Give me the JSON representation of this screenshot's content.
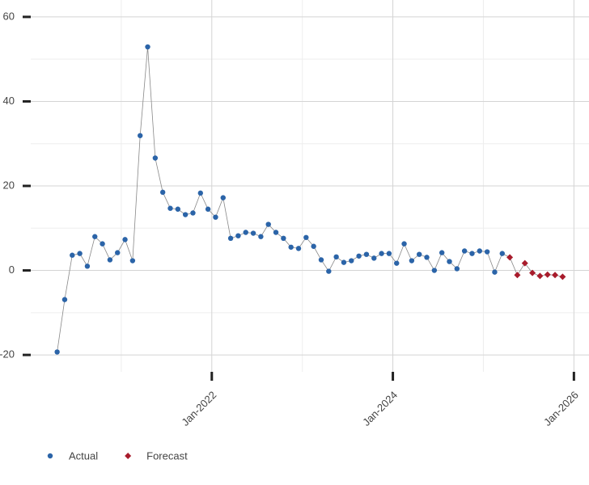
{
  "chart_data": {
    "type": "line",
    "xlim": [
      "Jan-2020",
      "Mar-2026"
    ],
    "xticks": [
      "Jan-2022",
      "Jan-2024",
      "Jan-2026"
    ],
    "ylim": [
      -24,
      64
    ],
    "yticks": [
      -20,
      0,
      20,
      40,
      60
    ],
    "grid": true,
    "legend": "bottom-left",
    "line_color": "#888888",
    "series": [
      {
        "name": "Actual",
        "color": "#2b64a8",
        "marker": "circle",
        "x": [
          "Apr-2020",
          "May-2020",
          "Jun-2020",
          "Jul-2020",
          "Aug-2020",
          "Sep-2020",
          "Oct-2020",
          "Nov-2020",
          "Dec-2020",
          "Jan-2021",
          "Feb-2021",
          "Mar-2021",
          "Apr-2021",
          "May-2021",
          "Jun-2021",
          "Jul-2021",
          "Aug-2021",
          "Sep-2021",
          "Oct-2021",
          "Nov-2021",
          "Dec-2021",
          "Jan-2022",
          "Feb-2022",
          "Mar-2022",
          "Apr-2022",
          "May-2022",
          "Jun-2022",
          "Jul-2022",
          "Aug-2022",
          "Sep-2022",
          "Oct-2022",
          "Nov-2022",
          "Dec-2022",
          "Jan-2023",
          "Feb-2023",
          "Mar-2023",
          "Apr-2023",
          "May-2023",
          "Jun-2023",
          "Jul-2023",
          "Aug-2023",
          "Sep-2023",
          "Oct-2023",
          "Nov-2023",
          "Dec-2023",
          "Jan-2024",
          "Feb-2024",
          "Mar-2024",
          "Apr-2024",
          "May-2024",
          "Jun-2024",
          "Jul-2024",
          "Aug-2024",
          "Sep-2024",
          "Oct-2024",
          "Nov-2024",
          "Dec-2024",
          "Jan-2025",
          "Feb-2025",
          "Mar-2025"
        ],
        "values": [
          -19.3,
          -6.9,
          3.6,
          4.0,
          1.0,
          8.0,
          6.3,
          2.5,
          4.2,
          7.3,
          2.3,
          31.9,
          52.9,
          26.6,
          18.5,
          14.7,
          14.5,
          13.2,
          13.6,
          18.3,
          14.5,
          12.6,
          17.2,
          7.6,
          8.2,
          9.0,
          8.8,
          8.0,
          10.9,
          9.0,
          7.6,
          5.5,
          5.2,
          7.8,
          5.7,
          2.5,
          -0.2,
          3.2,
          1.9,
          2.3,
          3.4,
          3.8,
          2.9,
          4.0,
          4.0,
          1.7,
          6.3,
          2.3,
          3.8,
          3.1,
          0.0,
          4.2,
          2.1,
          0.4,
          4.6,
          4.0,
          4.6,
          4.4,
          -0.4,
          4.0
        ]
      },
      {
        "name": "Forecast",
        "color": "#a81c2c",
        "marker": "diamond",
        "x": [
          "Apr-2025",
          "May-2025",
          "Jun-2025",
          "Jul-2025",
          "Aug-2025",
          "Sep-2025",
          "Oct-2025",
          "Nov-2025"
        ],
        "values": [
          3.1,
          -1.1,
          1.7,
          -0.6,
          -1.3,
          -1.0,
          -1.1,
          -1.5
        ]
      }
    ]
  }
}
